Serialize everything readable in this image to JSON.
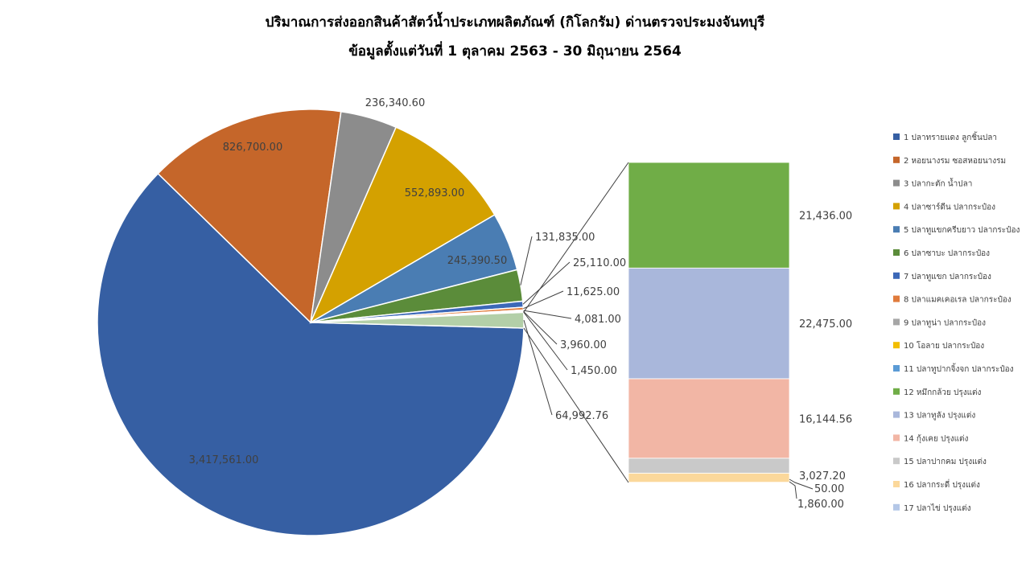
{
  "chart_data": {
    "type": "pie",
    "subtype": "bar-of-pie",
    "title": "ปริมาณการส่งออกสินค้าสัตว์น้ำประเภทผลิตภัณฑ์ (กิโลกรัม) ด่านตรวจประมงจันทบุรี",
    "subtitle": "ข้อมูลตั้งแต่วันที่ 1 ตุลาคม 2563 - 30 มิถุนายน 2564",
    "legend_position": "right",
    "categories": [
      "1 ปลาทรายแดง ลูกชิ้นปลา",
      "2 หอยนางรม ซอสหอยนางรม",
      "3 ปลากะตัก น้ำปลา",
      "4 ปลาซาร์ดีน ปลากระป๋อง",
      "5 ปลาทูแขกครีบยาว ปลากระป๋อง",
      "6 ปลาซาบะ ปลากระป๋อง",
      "7 ปลาทูแขก ปลากระป๋อง",
      "8 ปลาแมคเคอเรล ปลากระป๋อง",
      "9 ปลาทูน่า ปลากระป๋อง",
      "10 โอลาย ปลากระป๋อง",
      "11 ปลาทูปากจิ้งจก ปลากระป๋อง",
      "12 หมึกกล้วย ปรุงแต่ง",
      "13 ปลาทูลัง ปรุงแต่ง",
      "14 กุ้งเคย ปรุงแต่ง",
      "15 ปลาปากคม ปรุงแต่ง",
      "16 ปลากระดี่ ปรุงแต่ง",
      "17 ปลาไข่ ปรุงแต่ง"
    ],
    "values": [
      3417561.0,
      826700.0,
      236340.6,
      552893.0,
      245390.5,
      131835.0,
      25110.0,
      11625.0,
      4081.0,
      3960.0,
      1450.0,
      21436.0,
      22475.0,
      16144.56,
      3027.2,
      1860.0,
      50.0
    ],
    "value_labels": [
      "3,417,561.00",
      "826,700.00",
      "236,340.60",
      "552,893.00",
      "245,390.50",
      "131,835.00",
      "25,110.00",
      "11,625.00",
      "4,081.00",
      "3,960.00",
      "1,450.00",
      "21,436.00",
      "22,475.00",
      "16,144.56",
      "3,027.20",
      "1,860.00",
      "50.00"
    ],
    "colors": [
      "#365FA3",
      "#C5662A",
      "#8C8C8C",
      "#D4A100",
      "#4A7DB3",
      "#5B8C3A",
      "#3C68B8",
      "#E07B3C",
      "#A6A6A6",
      "#F2BE00",
      "#5B9BD5",
      "#70AD47",
      "#A9B7DB",
      "#F2B6A5",
      "#C9C9C9",
      "#FBD89B",
      "#B4C7E7"
    ],
    "pie_slices": [
      0,
      1,
      2,
      3,
      4,
      5,
      6,
      7,
      8,
      9,
      10
    ],
    "other_label": "64,992.76",
    "other_value": 64992.76,
    "bar_slices": [
      16,
      15,
      14,
      13,
      12,
      11
    ],
    "other_color": "#B3CFA8"
  }
}
